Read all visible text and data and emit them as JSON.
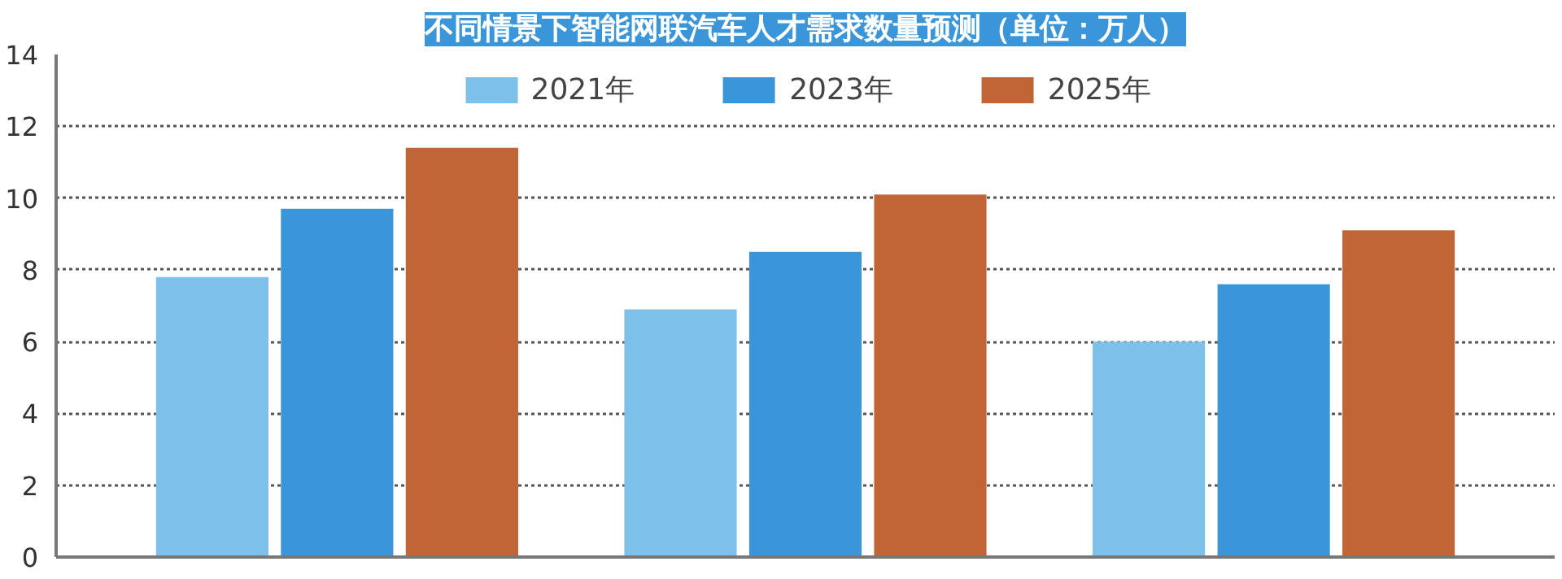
{
  "chart_data": {
    "type": "bar",
    "title": "不同情景下智能网联汽车人才需求数量预测（单位：万人）",
    "categories": [
      null,
      null,
      null
    ],
    "series": [
      {
        "name": "2021年",
        "color": "#7dc0ea",
        "values": [
          7.8,
          6.9,
          6.0
        ]
      },
      {
        "name": "2023年",
        "color": "#3a96d8",
        "values": [
          9.7,
          8.5,
          7.6
        ]
      },
      {
        "name": "2025年",
        "color": "#c06535",
        "values": [
          11.4,
          10.1,
          9.1
        ]
      }
    ],
    "ylim": [
      0,
      14
    ],
    "yticks": [
      0,
      2,
      4,
      6,
      8,
      10,
      12,
      14
    ],
    "grid": "y",
    "legend": "top",
    "tick_labels": "y"
  }
}
